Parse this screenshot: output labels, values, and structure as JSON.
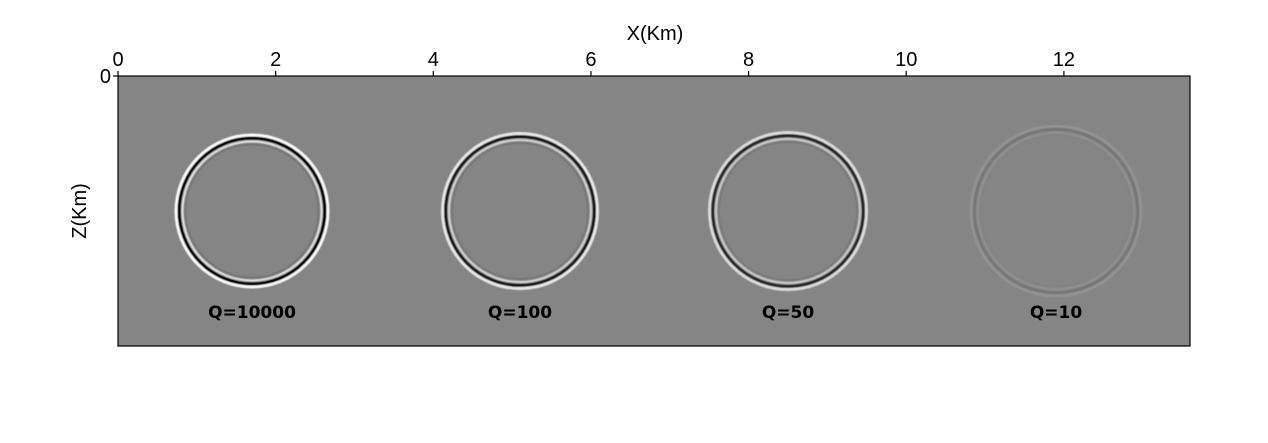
{
  "chart_data": {
    "type": "image",
    "xlabel": "X(Km)",
    "ylabel": "Z(Km)",
    "xlim": [
      0,
      13.6
    ],
    "xticks": [
      0,
      2,
      4,
      6,
      8,
      10,
      12
    ],
    "yticks": [
      0
    ],
    "x_axis_position": "top",
    "grid": false,
    "background_color": "#858585",
    "wavefronts": [
      {
        "label": "Q=10000",
        "center_x": 1.7,
        "contrast": 1.0
      },
      {
        "label": "Q=100",
        "center_x": 5.1,
        "contrast": 0.85
      },
      {
        "label": "Q=50",
        "center_x": 8.5,
        "contrast": 0.75
      },
      {
        "label": "Q=10",
        "center_x": 11.9,
        "contrast": 0.12
      }
    ]
  }
}
